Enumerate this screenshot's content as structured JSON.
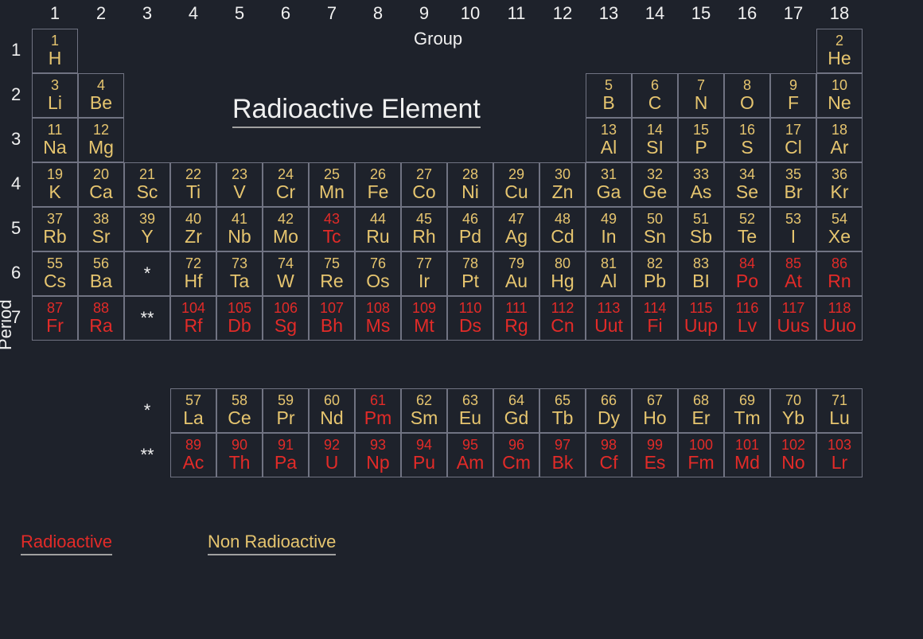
{
  "title": "Radioactive Element",
  "group_label": "Group",
  "period_label": "Period",
  "colors": {
    "background": "#1e222b",
    "border": "#707382",
    "label_text": "#f0f0f0",
    "nonradioactive": "#e6c56f",
    "radioactive": "#e22b28"
  },
  "legend": {
    "radioactive": "Radioactive",
    "nonradioactive": "Non Radioactive"
  },
  "group_numbers": [
    "1",
    "2",
    "3",
    "4",
    "5",
    "6",
    "7",
    "8",
    "9",
    "10",
    "11",
    "12",
    "13",
    "14",
    "15",
    "16",
    "17",
    "18"
  ],
  "period_numbers": [
    "1",
    "2",
    "3",
    "4",
    "5",
    "6",
    "7"
  ],
  "lanthanide_marker": "*",
  "actinide_marker": "**",
  "main_table": [
    [
      {
        "n": "1",
        "s": "H",
        "r": false
      },
      null,
      null,
      null,
      null,
      null,
      null,
      null,
      null,
      null,
      null,
      null,
      null,
      null,
      null,
      null,
      null,
      {
        "n": "2",
        "s": "He",
        "r": false
      }
    ],
    [
      {
        "n": "3",
        "s": "Li",
        "r": false
      },
      {
        "n": "4",
        "s": "Be",
        "r": false
      },
      null,
      null,
      null,
      null,
      null,
      null,
      null,
      null,
      null,
      null,
      {
        "n": "5",
        "s": "B",
        "r": false
      },
      {
        "n": "6",
        "s": "C",
        "r": false
      },
      {
        "n": "7",
        "s": "N",
        "r": false
      },
      {
        "n": "8",
        "s": "O",
        "r": false
      },
      {
        "n": "9",
        "s": "F",
        "r": false
      },
      {
        "n": "10",
        "s": "Ne",
        "r": false
      }
    ],
    [
      {
        "n": "11",
        "s": "Na",
        "r": false
      },
      {
        "n": "12",
        "s": "Mg",
        "r": false
      },
      null,
      null,
      null,
      null,
      null,
      null,
      null,
      null,
      null,
      null,
      {
        "n": "13",
        "s": "Al",
        "r": false
      },
      {
        "n": "14",
        "s": "SI",
        "r": false
      },
      {
        "n": "15",
        "s": "P",
        "r": false
      },
      {
        "n": "16",
        "s": "S",
        "r": false
      },
      {
        "n": "17",
        "s": "Cl",
        "r": false
      },
      {
        "n": "18",
        "s": "Ar",
        "r": false
      }
    ],
    [
      {
        "n": "19",
        "s": "K",
        "r": false
      },
      {
        "n": "20",
        "s": "Ca",
        "r": false
      },
      {
        "n": "21",
        "s": "Sc",
        "r": false
      },
      {
        "n": "22",
        "s": "Ti",
        "r": false
      },
      {
        "n": "23",
        "s": "V",
        "r": false
      },
      {
        "n": "24",
        "s": "Cr",
        "r": false
      },
      {
        "n": "25",
        "s": "Mn",
        "r": false
      },
      {
        "n": "26",
        "s": "Fe",
        "r": false
      },
      {
        "n": "27",
        "s": "Co",
        "r": false
      },
      {
        "n": "28",
        "s": "Ni",
        "r": false
      },
      {
        "n": "29",
        "s": "Cu",
        "r": false
      },
      {
        "n": "30",
        "s": "Zn",
        "r": false
      },
      {
        "n": "31",
        "s": "Ga",
        "r": false
      },
      {
        "n": "32",
        "s": "Ge",
        "r": false
      },
      {
        "n": "33",
        "s": "As",
        "r": false
      },
      {
        "n": "34",
        "s": "Se",
        "r": false
      },
      {
        "n": "35",
        "s": "Br",
        "r": false
      },
      {
        "n": "36",
        "s": "Kr",
        "r": false
      }
    ],
    [
      {
        "n": "37",
        "s": "Rb",
        "r": false
      },
      {
        "n": "38",
        "s": "Sr",
        "r": false
      },
      {
        "n": "39",
        "s": "Y",
        "r": false
      },
      {
        "n": "40",
        "s": "Zr",
        "r": false
      },
      {
        "n": "41",
        "s": "Nb",
        "r": false
      },
      {
        "n": "42",
        "s": "Mo",
        "r": false
      },
      {
        "n": "43",
        "s": "Tc",
        "r": true
      },
      {
        "n": "44",
        "s": "Ru",
        "r": false
      },
      {
        "n": "45",
        "s": "Rh",
        "r": false
      },
      {
        "n": "46",
        "s": "Pd",
        "r": false
      },
      {
        "n": "47",
        "s": "Ag",
        "r": false
      },
      {
        "n": "48",
        "s": "Cd",
        "r": false
      },
      {
        "n": "49",
        "s": "In",
        "r": false
      },
      {
        "n": "50",
        "s": "Sn",
        "r": false
      },
      {
        "n": "51",
        "s": "Sb",
        "r": false
      },
      {
        "n": "52",
        "s": "Te",
        "r": false
      },
      {
        "n": "53",
        "s": "I",
        "r": false
      },
      {
        "n": "54",
        "s": "Xe",
        "r": false
      }
    ],
    [
      {
        "n": "55",
        "s": "Cs",
        "r": false
      },
      {
        "n": "56",
        "s": "Ba",
        "r": false
      },
      {
        "marker": "*"
      },
      {
        "n": "72",
        "s": "Hf",
        "r": false
      },
      {
        "n": "73",
        "s": "Ta",
        "r": false
      },
      {
        "n": "74",
        "s": "W",
        "r": false
      },
      {
        "n": "75",
        "s": "Re",
        "r": false
      },
      {
        "n": "76",
        "s": "Os",
        "r": false
      },
      {
        "n": "77",
        "s": "Ir",
        "r": false
      },
      {
        "n": "78",
        "s": "Pt",
        "r": false
      },
      {
        "n": "79",
        "s": "Au",
        "r": false
      },
      {
        "n": "80",
        "s": "Hg",
        "r": false
      },
      {
        "n": "81",
        "s": "Al",
        "r": false
      },
      {
        "n": "82",
        "s": "Pb",
        "r": false
      },
      {
        "n": "83",
        "s": "BI",
        "r": false
      },
      {
        "n": "84",
        "s": "Po",
        "r": true
      },
      {
        "n": "85",
        "s": "At",
        "r": true
      },
      {
        "n": "86",
        "s": "Rn",
        "r": true
      }
    ],
    [
      {
        "n": "87",
        "s": "Fr",
        "r": true
      },
      {
        "n": "88",
        "s": "Ra",
        "r": true
      },
      {
        "marker": "**"
      },
      {
        "n": "104",
        "s": "Rf",
        "r": true
      },
      {
        "n": "105",
        "s": "Db",
        "r": true
      },
      {
        "n": "106",
        "s": "Sg",
        "r": true
      },
      {
        "n": "107",
        "s": "Bh",
        "r": true
      },
      {
        "n": "108",
        "s": "Ms",
        "r": true
      },
      {
        "n": "109",
        "s": "Mt",
        "r": true
      },
      {
        "n": "110",
        "s": "Ds",
        "r": true
      },
      {
        "n": "111",
        "s": "Rg",
        "r": true
      },
      {
        "n": "112",
        "s": "Cn",
        "r": true
      },
      {
        "n": "113",
        "s": "Uut",
        "r": true
      },
      {
        "n": "114",
        "s": "Fi",
        "r": true
      },
      {
        "n": "115",
        "s": "Uup",
        "r": true
      },
      {
        "n": "116",
        "s": "Lv",
        "r": true
      },
      {
        "n": "117",
        "s": "Uus",
        "r": true
      },
      {
        "n": "118",
        "s": "Uuo",
        "r": true
      }
    ]
  ],
  "f_block": [
    {
      "marker": "*",
      "row": [
        {
          "n": "57",
          "s": "La",
          "r": false
        },
        {
          "n": "58",
          "s": "Ce",
          "r": false
        },
        {
          "n": "59",
          "s": "Pr",
          "r": false
        },
        {
          "n": "60",
          "s": "Nd",
          "r": false
        },
        {
          "n": "61",
          "s": "Pm",
          "r": true
        },
        {
          "n": "62",
          "s": "Sm",
          "r": false
        },
        {
          "n": "63",
          "s": "Eu",
          "r": false
        },
        {
          "n": "64",
          "s": "Gd",
          "r": false
        },
        {
          "n": "65",
          "s": "Tb",
          "r": false
        },
        {
          "n": "66",
          "s": "Dy",
          "r": false
        },
        {
          "n": "67",
          "s": "Ho",
          "r": false
        },
        {
          "n": "68",
          "s": "Er",
          "r": false
        },
        {
          "n": "69",
          "s": "Tm",
          "r": false
        },
        {
          "n": "70",
          "s": "Yb",
          "r": false
        },
        {
          "n": "71",
          "s": "Lu",
          "r": false
        }
      ]
    },
    {
      "marker": "**",
      "row": [
        {
          "n": "89",
          "s": "Ac",
          "r": true
        },
        {
          "n": "90",
          "s": "Th",
          "r": true
        },
        {
          "n": "91",
          "s": "Pa",
          "r": true
        },
        {
          "n": "92",
          "s": "U",
          "r": true
        },
        {
          "n": "93",
          "s": "Np",
          "r": true
        },
        {
          "n": "94",
          "s": "Pu",
          "r": true
        },
        {
          "n": "95",
          "s": "Am",
          "r": true
        },
        {
          "n": "96",
          "s": "Cm",
          "r": true
        },
        {
          "n": "97",
          "s": "Bk",
          "r": true
        },
        {
          "n": "98",
          "s": "Cf",
          "r": true
        },
        {
          "n": "99",
          "s": "Es",
          "r": true
        },
        {
          "n": "100",
          "s": "Fm",
          "r": true
        },
        {
          "n": "101",
          "s": "Md",
          "r": true
        },
        {
          "n": "102",
          "s": "No",
          "r": true
        },
        {
          "n": "103",
          "s": "Lr",
          "r": true
        }
      ]
    }
  ]
}
